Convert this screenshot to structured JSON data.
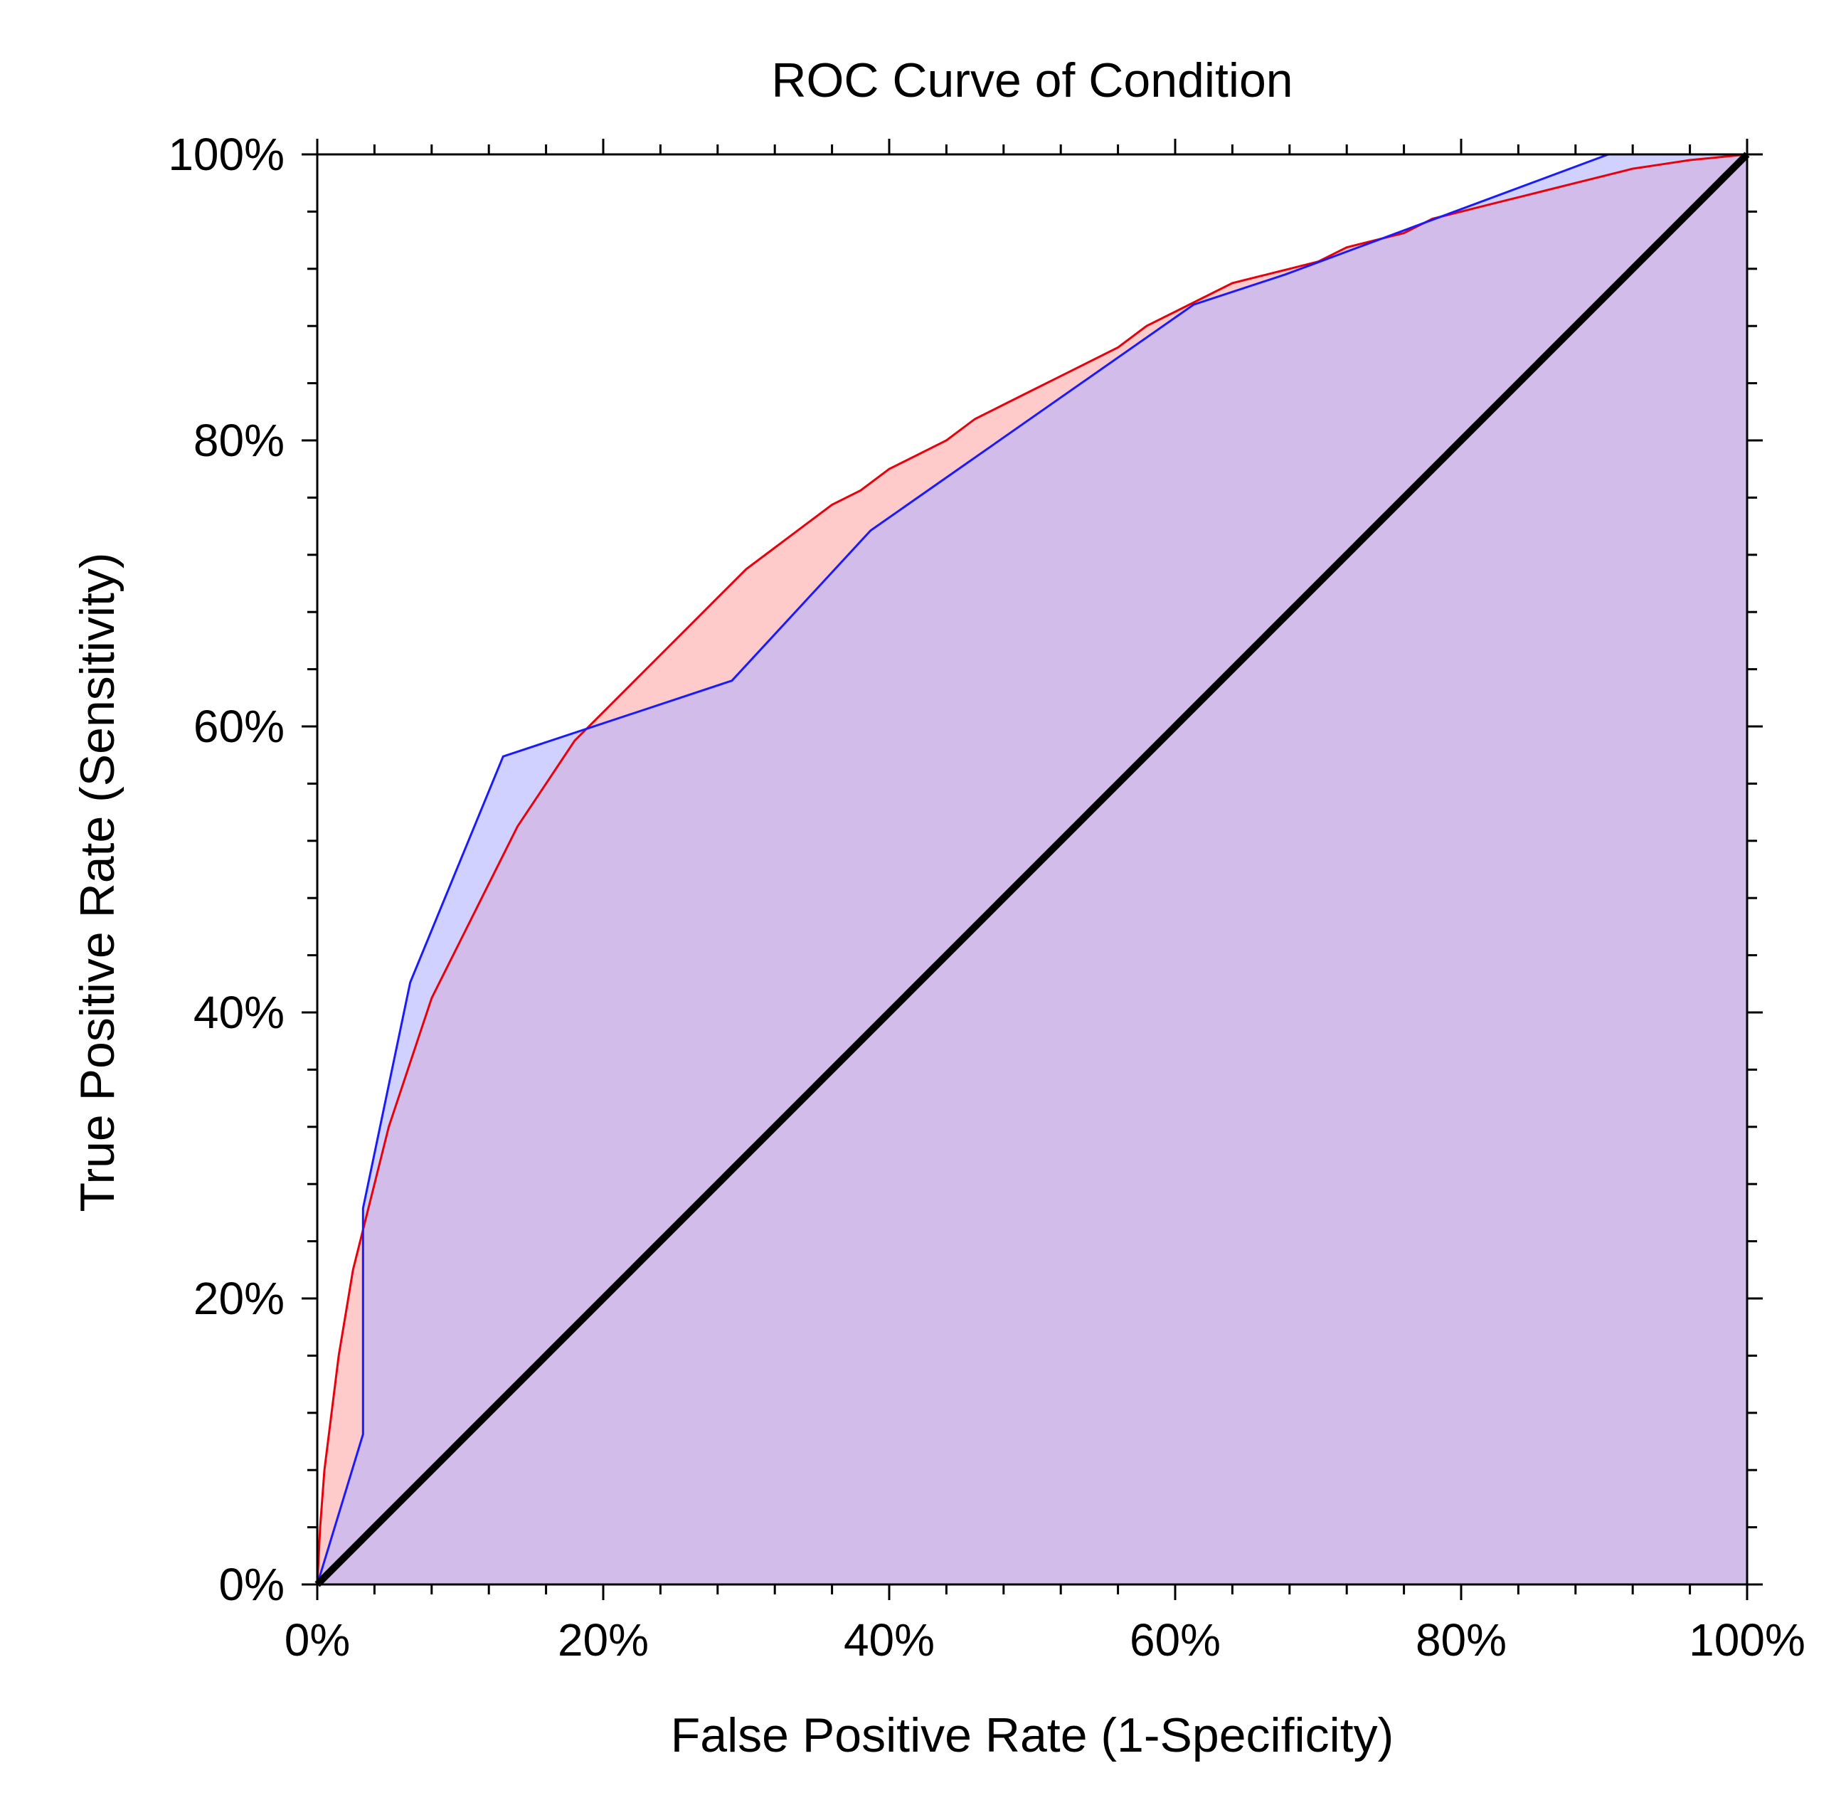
{
  "chart_data": {
    "type": "line",
    "title": "ROC Curve of Condition",
    "xlabel": "False Positive Rate (1-Specificity)",
    "ylabel": "True Positive Rate (Sensitivity)",
    "xlim": [
      0,
      100
    ],
    "ylim": [
      0,
      100
    ],
    "x_ticks": [
      "0%",
      "20%",
      "40%",
      "60%",
      "80%",
      "100%"
    ],
    "y_ticks": [
      "0%",
      "20%",
      "40%",
      "60%",
      "80%",
      "100%"
    ],
    "grid": false,
    "legend": "none",
    "colors": {
      "series_red": "#e8000b",
      "fill_red": "#ffb3b3",
      "series_blue": "#1a1aff",
      "fill_blue": "#b3b3ff",
      "diagonal": "#000000"
    },
    "series": [
      {
        "name": "red",
        "x": [
          0,
          0.2,
          0.5,
          1,
          1.5,
          2,
          2.5,
          3,
          3.5,
          4,
          5,
          6,
          7,
          8,
          9,
          10,
          11,
          12,
          13,
          14,
          15,
          16,
          17,
          18,
          19,
          20,
          21,
          22,
          24,
          26,
          28,
          30,
          32,
          34,
          36,
          38,
          40,
          42,
          44,
          46,
          48,
          50,
          52,
          54,
          56,
          58,
          60,
          62,
          64,
          66,
          68,
          70,
          72,
          74,
          76,
          78,
          80,
          82,
          84,
          86,
          88,
          90,
          92,
          94,
          96,
          98,
          100
        ],
        "y": [
          0,
          4,
          8,
          12,
          16,
          19,
          22,
          24,
          26,
          28,
          32,
          35,
          38,
          41,
          43,
          45,
          47,
          49,
          51,
          53,
          54.5,
          56,
          57.5,
          59,
          60,
          61,
          62,
          63,
          65,
          67,
          69,
          71,
          72.5,
          74,
          75.5,
          76.5,
          78,
          79,
          80,
          81.5,
          82.5,
          83.5,
          84.5,
          85.5,
          86.5,
          88,
          89,
          90,
          91,
          91.5,
          92,
          92.5,
          93.5,
          94,
          94.5,
          95.5,
          96,
          96.5,
          97,
          97.5,
          98,
          98.5,
          99,
          99.3,
          99.6,
          99.8,
          100
        ]
      },
      {
        "name": "blue",
        "x": [
          0,
          3.2,
          3.2,
          6.5,
          13,
          29,
          38.7,
          61.3,
          67.7,
          90.3,
          100
        ],
        "y": [
          0,
          10.5,
          26.3,
          42.1,
          57.9,
          63.2,
          73.7,
          89.5,
          91.6,
          100,
          100
        ]
      },
      {
        "name": "reference",
        "x": [
          0,
          100
        ],
        "y": [
          0,
          100
        ]
      }
    ]
  }
}
